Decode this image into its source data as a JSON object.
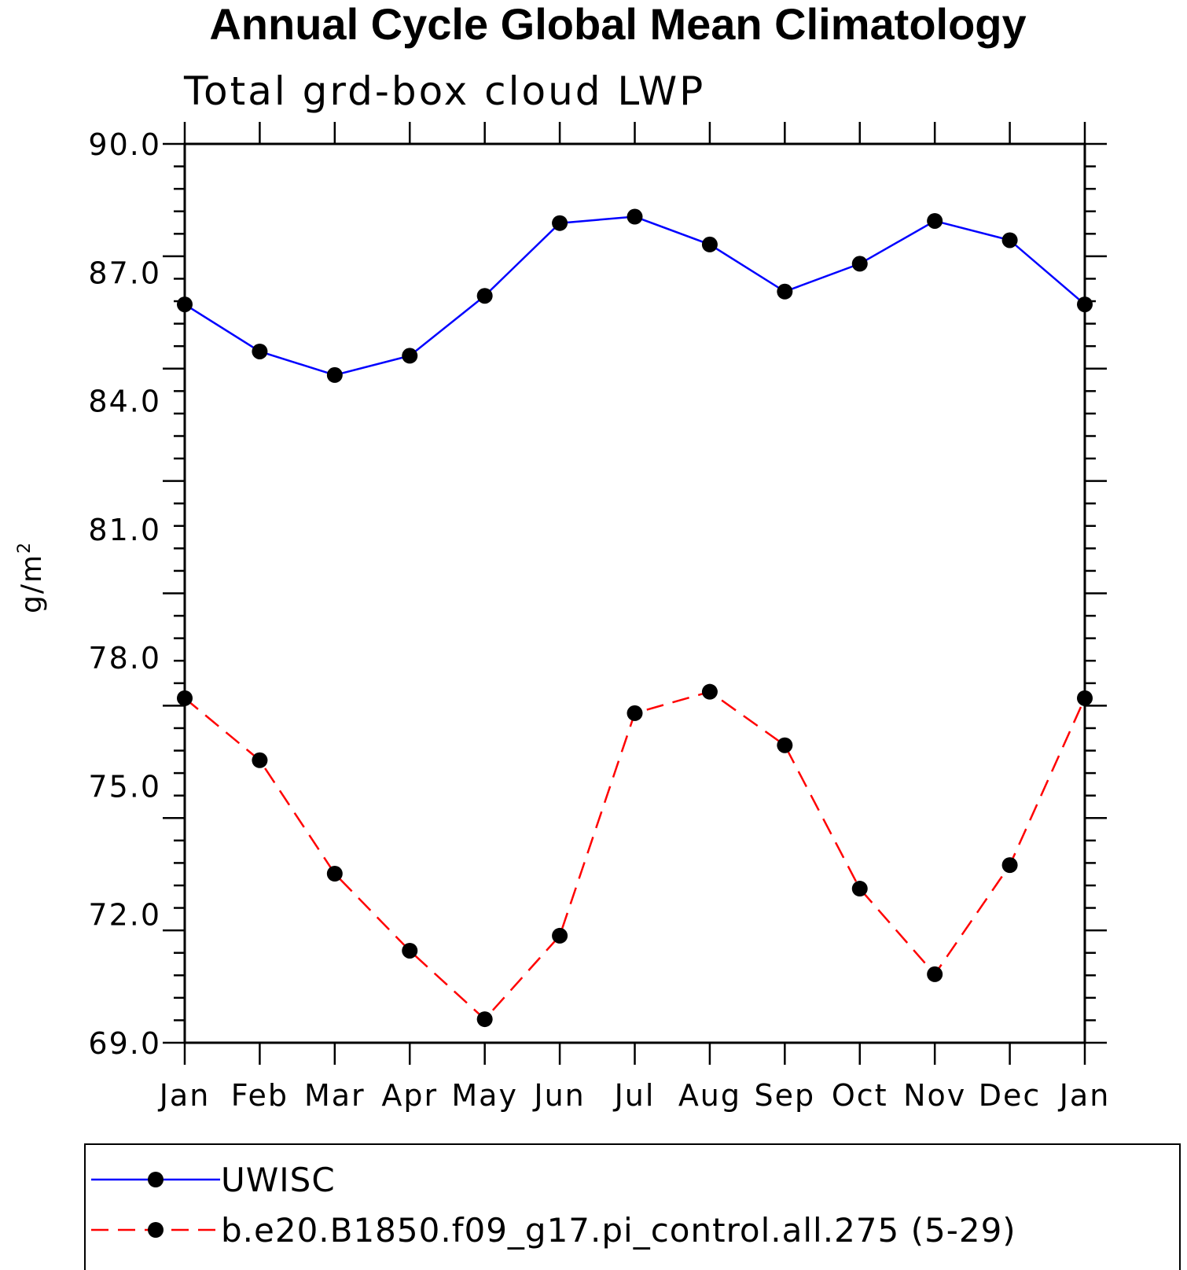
{
  "chart_data": {
    "type": "line",
    "title": "Annual Cycle Global Mean Climatology",
    "subtitle": "Total grd-box cloud LWP",
    "ylabel": "g/m",
    "ylabel_sup": "2",
    "ylim": [
      69.0,
      90.0
    ],
    "yticks_major": [
      69.0,
      72.0,
      75.0,
      78.0,
      81.0,
      84.0,
      87.0,
      90.0
    ],
    "ytick_labels": [
      "69.0",
      "72.0",
      "75.0",
      "78.0",
      "81.0",
      "84.0",
      "87.0",
      "90.0"
    ],
    "categories": [
      "Jan",
      "Feb",
      "Mar",
      "Apr",
      "May",
      "Jun",
      "Jul",
      "Aug",
      "Sep",
      "Oct",
      "Nov",
      "Dec",
      "Jan"
    ],
    "series": [
      {
        "name": "UWISC",
        "color": "#0000ff",
        "dashed": false,
        "values": [
          86.25,
          85.15,
          84.6,
          85.05,
          86.45,
          88.15,
          88.3,
          87.65,
          86.55,
          87.2,
          88.2,
          87.75,
          86.25
        ]
      },
      {
        "name": "b.e20.B1850.f09_g17.pi_control.all.275 (5-29)",
        "color": "#ff0000",
        "dashed": true,
        "values": [
          77.05,
          75.6,
          72.95,
          71.15,
          69.55,
          71.5,
          76.7,
          77.2,
          75.95,
          72.6,
          70.6,
          73.15,
          77.05
        ]
      }
    ],
    "legend_placement": "bottom"
  }
}
